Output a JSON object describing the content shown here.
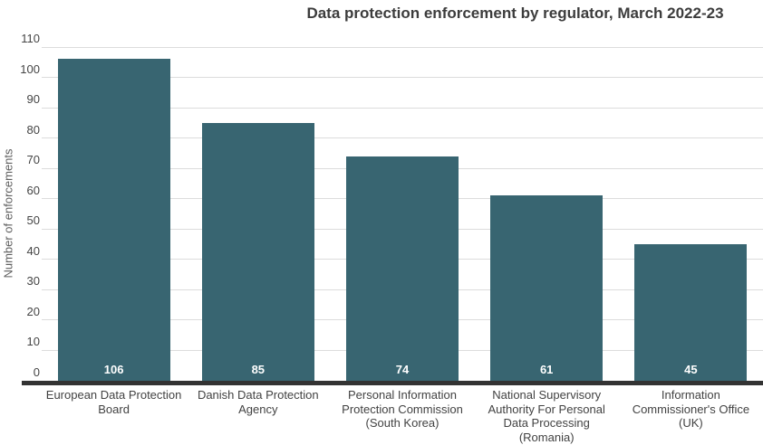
{
  "colors": {
    "background": "#ffffff",
    "bar": "#386571",
    "gridline": "#dcdcdc",
    "axis_line": "#333333",
    "title_text": "#3c3c3c",
    "tick_text": "#444444",
    "xlabel_text": "#424242",
    "value_label_text": "#ffffff",
    "ylabel_text": "#5f5f5f"
  },
  "chart_data": {
    "type": "bar",
    "title": "Data protection enforcement by regulator, March 2022-23",
    "xlabel": "",
    "ylabel": "Number of enforcements",
    "ylim": [
      0,
      110
    ],
    "ytick_step": 10,
    "grid": true,
    "legend": "none",
    "categories": [
      "European Data Protection Board",
      "Danish Data Protection Agency",
      "Personal Information Protection Commission (South Korea)",
      "National Supervisory Authority For Personal Data Processing (Romania)",
      "Information Commissioner's Office (UK)"
    ],
    "category_lines": [
      [
        "European Data Protection",
        "Board"
      ],
      [
        "Danish Data Protection",
        "Agency"
      ],
      [
        "Personal Information",
        "Protection Commission",
        "(South Korea)"
      ],
      [
        "National Supervisory",
        "Authority For Personal",
        "Data Processing",
        "(Romania)"
      ],
      [
        "Information",
        "Commissioner's Office",
        "(UK)"
      ]
    ],
    "values": [
      106,
      85,
      74,
      61,
      45
    ],
    "value_labels": [
      "106",
      "85",
      "74",
      "61",
      "45"
    ]
  }
}
